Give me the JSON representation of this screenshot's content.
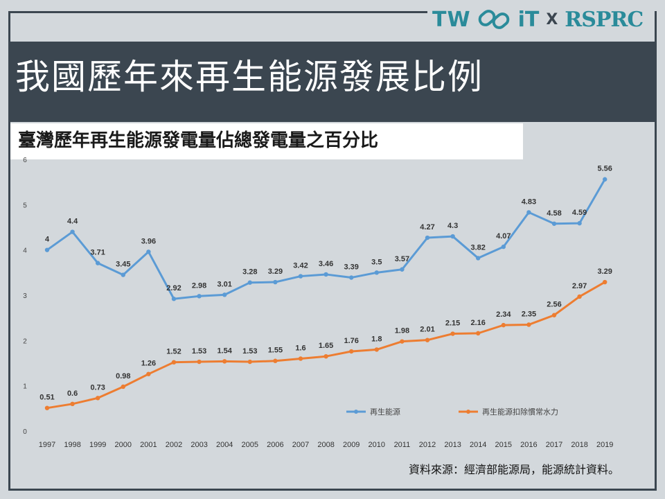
{
  "logo": {
    "part1": "TW",
    "part2": "iT",
    "separator": "X",
    "part3": "RSPRC",
    "icon": "link-chain-icon",
    "color": "#2a8b9a"
  },
  "title": "我國歷年來再生能源發展比例",
  "subtitle": "臺灣歷年再生能源發電量佔總發電量之百分比",
  "source": "資料來源：經濟部能源局，能源統計資料。",
  "chart_data": {
    "type": "line",
    "title": "臺灣歷年再生能源發電量佔總發電量之百分比",
    "xlabel": "",
    "ylabel": "",
    "ylim": [
      0,
      6
    ],
    "yticks": [
      0,
      1,
      2,
      3,
      4,
      5,
      6
    ],
    "grid": false,
    "legend_position": "bottom-right",
    "x": [
      "1997",
      "1998",
      "1999",
      "2000",
      "2001",
      "2002",
      "2003",
      "2004",
      "2005",
      "2006",
      "2007",
      "2008",
      "2009",
      "2010",
      "2011",
      "2012",
      "2013",
      "2014",
      "2015",
      "2016",
      "2017",
      "2018",
      "2019"
    ],
    "series": [
      {
        "name": "再生能源",
        "color": "#5b9bd5",
        "values": [
          4,
          4.4,
          3.71,
          3.45,
          3.96,
          2.92,
          2.98,
          3.01,
          3.28,
          3.29,
          3.42,
          3.46,
          3.39,
          3.5,
          3.57,
          4.27,
          4.3,
          3.82,
          4.07,
          4.83,
          4.58,
          4.59,
          5.56
        ],
        "labels": [
          "4",
          "4.4",
          "3.71",
          "3.45",
          "3.96",
          "2.92",
          "2.98",
          "3.01",
          "3.28",
          "3.29",
          "3.42",
          "3.46",
          "3.39",
          "3.5",
          "3.57",
          "4.27",
          "4.3",
          "3.82",
          "4.07",
          "4.83",
          "4.58",
          "4.59",
          "5.56"
        ]
      },
      {
        "name": "再生能源扣除慣常水力",
        "color": "#ed7d31",
        "values": [
          0.51,
          0.6,
          0.73,
          0.98,
          1.26,
          1.52,
          1.53,
          1.54,
          1.53,
          1.55,
          1.6,
          1.65,
          1.76,
          1.8,
          1.98,
          2.01,
          2.15,
          2.16,
          2.34,
          2.35,
          2.56,
          2.97,
          3.29
        ],
        "labels": [
          "0.51",
          "0.6",
          "0.73",
          "0.98",
          "1.26",
          "1.52",
          "1.53",
          "1.54",
          "1.53",
          "1.55",
          "1.6",
          "1.65",
          "1.76",
          "1.8",
          "1.98",
          "2.01",
          "2.15",
          "2.16",
          "2.34",
          "2.35",
          "2.56",
          "2.97",
          "3.29"
        ]
      }
    ]
  }
}
